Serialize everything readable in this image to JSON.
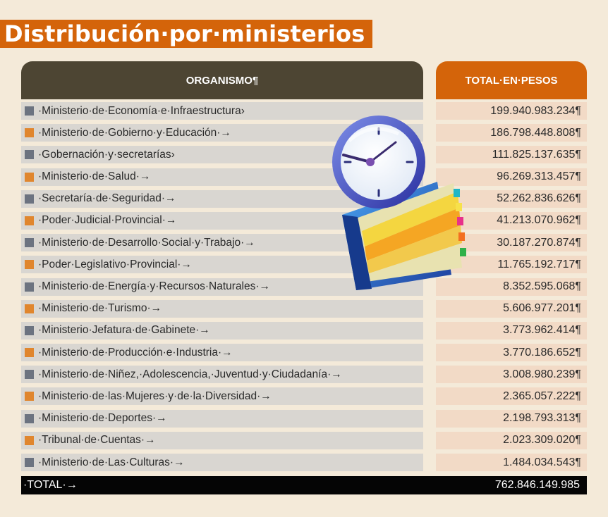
{
  "title": "Distribución·por·ministerios",
  "header": {
    "organismo_label": "ORGANISMO¶",
    "total_label": "TOTAL·EN·PESOS"
  },
  "rows": [
    {
      "name": "·Ministerio·de·Economía·e·Infraestructura›",
      "total": "199.940.983.234¶",
      "color": "grey"
    },
    {
      "name": "·Ministerio·de·Gobierno·y·Educación·→",
      "total": "186.798.448.808¶",
      "color": "orange"
    },
    {
      "name": "·Gobernación·y·secretarías›",
      "total": "111.825.137.635¶",
      "color": "grey"
    },
    {
      "name": "·Ministerio·de·Salud·→",
      "total": "96.269.313.457¶",
      "color": "orange"
    },
    {
      "name": "·Secretaría·de·Seguridad·→",
      "total": "52.262.836.626¶",
      "color": "grey"
    },
    {
      "name": "·Poder·Judicial·Provincial·→",
      "total": "41.213.070.962¶",
      "color": "orange"
    },
    {
      "name": "·Ministerio·de·Desarrollo·Social·y·Trabajo·→",
      "total": "30.187.270.874¶",
      "color": "grey"
    },
    {
      "name": "·Poder·Legislativo·Provincial·→",
      "total": "11.765.192.717¶",
      "color": "orange"
    },
    {
      "name": "·Ministerio·de·Energía·y·Recursos·Naturales·→",
      "total": "8.352.595.068¶",
      "color": "grey"
    },
    {
      "name": "·Ministerio·de·Turismo·→",
      "total": "5.606.977.201¶",
      "color": "orange"
    },
    {
      "name": "·Ministerio·Jefatura·de·Gabinete·→",
      "total": "3.773.962.414¶",
      "color": "grey"
    },
    {
      "name": "·Ministerio·de·Producción·e·Industria·→",
      "total": "3.770.186.652¶",
      "color": "orange"
    },
    {
      "name": "·Ministerio·de·Niñez,·Adolescencia,·Juventud·y·Ciudadanía·→",
      "total": "3.008.980.239¶",
      "color": "grey"
    },
    {
      "name": "·Ministerio·de·las·Mujeres·y·de·la·Diversidad·→",
      "total": "2.365.057.222¶",
      "color": "orange"
    },
    {
      "name": "·Ministerio·de·Deportes·→",
      "total": "2.198.793.313¶",
      "color": "grey"
    },
    {
      "name": "·Tribunal·de·Cuentas·→",
      "total": "2.023.309.020¶",
      "color": "orange"
    },
    {
      "name": "·Ministerio·de·Las·Culturas·→",
      "total": "1.484.034.543¶",
      "color": "grey"
    }
  ],
  "total": {
    "label": "·TOTAL·→",
    "value": "762.846.149.985"
  },
  "colors": {
    "accent": "#d4640a",
    "header_dark": "#4d4533",
    "row_grey": "#d9d6d1",
    "row_peach": "#f2dac6",
    "marker_grey": "#6c7380",
    "marker_orange": "#e0862e",
    "background": "#f4ead9"
  },
  "icons": [
    "clock-icon",
    "book-icon"
  ]
}
